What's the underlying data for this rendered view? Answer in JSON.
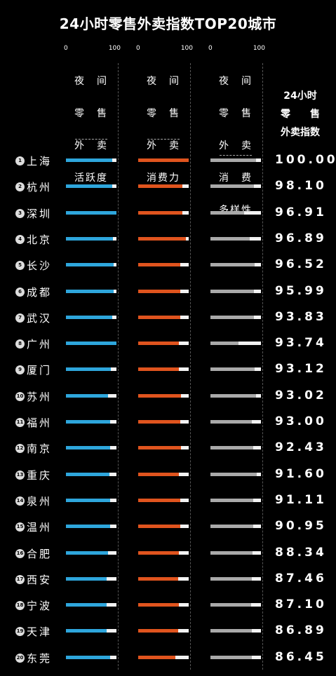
{
  "chart_data": {
    "type": "table",
    "title": "24小时零售外卖指数TOP20城市",
    "columns": [
      {
        "name": "夜间零售外卖活跃度",
        "label_lines": [
          "夜　间",
          "零　售",
          "外　卖",
          "活跃度"
        ],
        "scale_min": "0",
        "scale_max": "100",
        "color": "#2ea6dc"
      },
      {
        "name": "夜间零售外卖消费力",
        "label_lines": [
          "夜　间",
          "零　售",
          "外　卖",
          "消费力"
        ],
        "scale_min": "0",
        "scale_max": "100",
        "color": "#e0541e"
      },
      {
        "name": "夜间零售外卖消费多样性",
        "label_lines": [
          "夜　间",
          "零　售",
          "外　卖",
          "消　费",
          "多样性"
        ],
        "scale_min": "0",
        "scale_max": "100",
        "color": "#a9a9a9"
      }
    ],
    "index_header_lines": [
      "24小时",
      "零　　售",
      "外卖指数"
    ],
    "rows": [
      {
        "rank": "1",
        "city": "上海",
        "activity": 91,
        "spending": 100,
        "diversity": 90,
        "index": "100.00"
      },
      {
        "rank": "2",
        "city": "杭州",
        "activity": 92,
        "spending": 88,
        "diversity": 86,
        "index": "98.10"
      },
      {
        "rank": "3",
        "city": "深圳",
        "activity": 100,
        "spending": 87,
        "diversity": 66,
        "index": "96.91"
      },
      {
        "rank": "4",
        "city": "北京",
        "activity": 93,
        "spending": 95,
        "diversity": 78,
        "index": "96.89"
      },
      {
        "rank": "5",
        "city": "长沙",
        "activity": 95,
        "spending": 83,
        "diversity": 88,
        "index": "96.52"
      },
      {
        "rank": "6",
        "city": "成都",
        "activity": 94,
        "spending": 84,
        "diversity": 86,
        "index": "95.99"
      },
      {
        "rank": "7",
        "city": "武汉",
        "activity": 92,
        "spending": 83,
        "diversity": 86,
        "index": "93.83"
      },
      {
        "rank": "8",
        "city": "广州",
        "activity": 100,
        "spending": 80,
        "diversity": 56,
        "index": "93.74"
      },
      {
        "rank": "9",
        "city": "厦门",
        "activity": 89,
        "spending": 81,
        "diversity": 88,
        "index": "93.12"
      },
      {
        "rank": "10",
        "city": "苏州",
        "activity": 84,
        "spending": 85,
        "diversity": 90,
        "index": "93.02"
      },
      {
        "rank": "11",
        "city": "福州",
        "activity": 88,
        "spending": 84,
        "diversity": 82,
        "index": "93.00"
      },
      {
        "rank": "12",
        "city": "南京",
        "activity": 88,
        "spending": 85,
        "diversity": 85,
        "index": "92.43"
      },
      {
        "rank": "13",
        "city": "重庆",
        "activity": 86,
        "spending": 80,
        "diversity": 92,
        "index": "91.60"
      },
      {
        "rank": "14",
        "city": "泉州",
        "activity": 88,
        "spending": 84,
        "diversity": 85,
        "index": "91.11"
      },
      {
        "rank": "15",
        "city": "温州",
        "activity": 88,
        "spending": 84,
        "diversity": 85,
        "index": "90.95"
      },
      {
        "rank": "16",
        "city": "合肥",
        "activity": 84,
        "spending": 80,
        "diversity": 84,
        "index": "88.34"
      },
      {
        "rank": "17",
        "city": "西安",
        "activity": 81,
        "spending": 79,
        "diversity": 82,
        "index": "87.46"
      },
      {
        "rank": "18",
        "city": "宁波",
        "activity": 80,
        "spending": 80,
        "diversity": 80,
        "index": "87.10"
      },
      {
        "rank": "19",
        "city": "天津",
        "activity": 80,
        "spending": 79,
        "diversity": 82,
        "index": "86.89"
      },
      {
        "rank": "20",
        "city": "东莞",
        "activity": 88,
        "spending": 74,
        "diversity": 82,
        "index": "86.45"
      }
    ]
  }
}
